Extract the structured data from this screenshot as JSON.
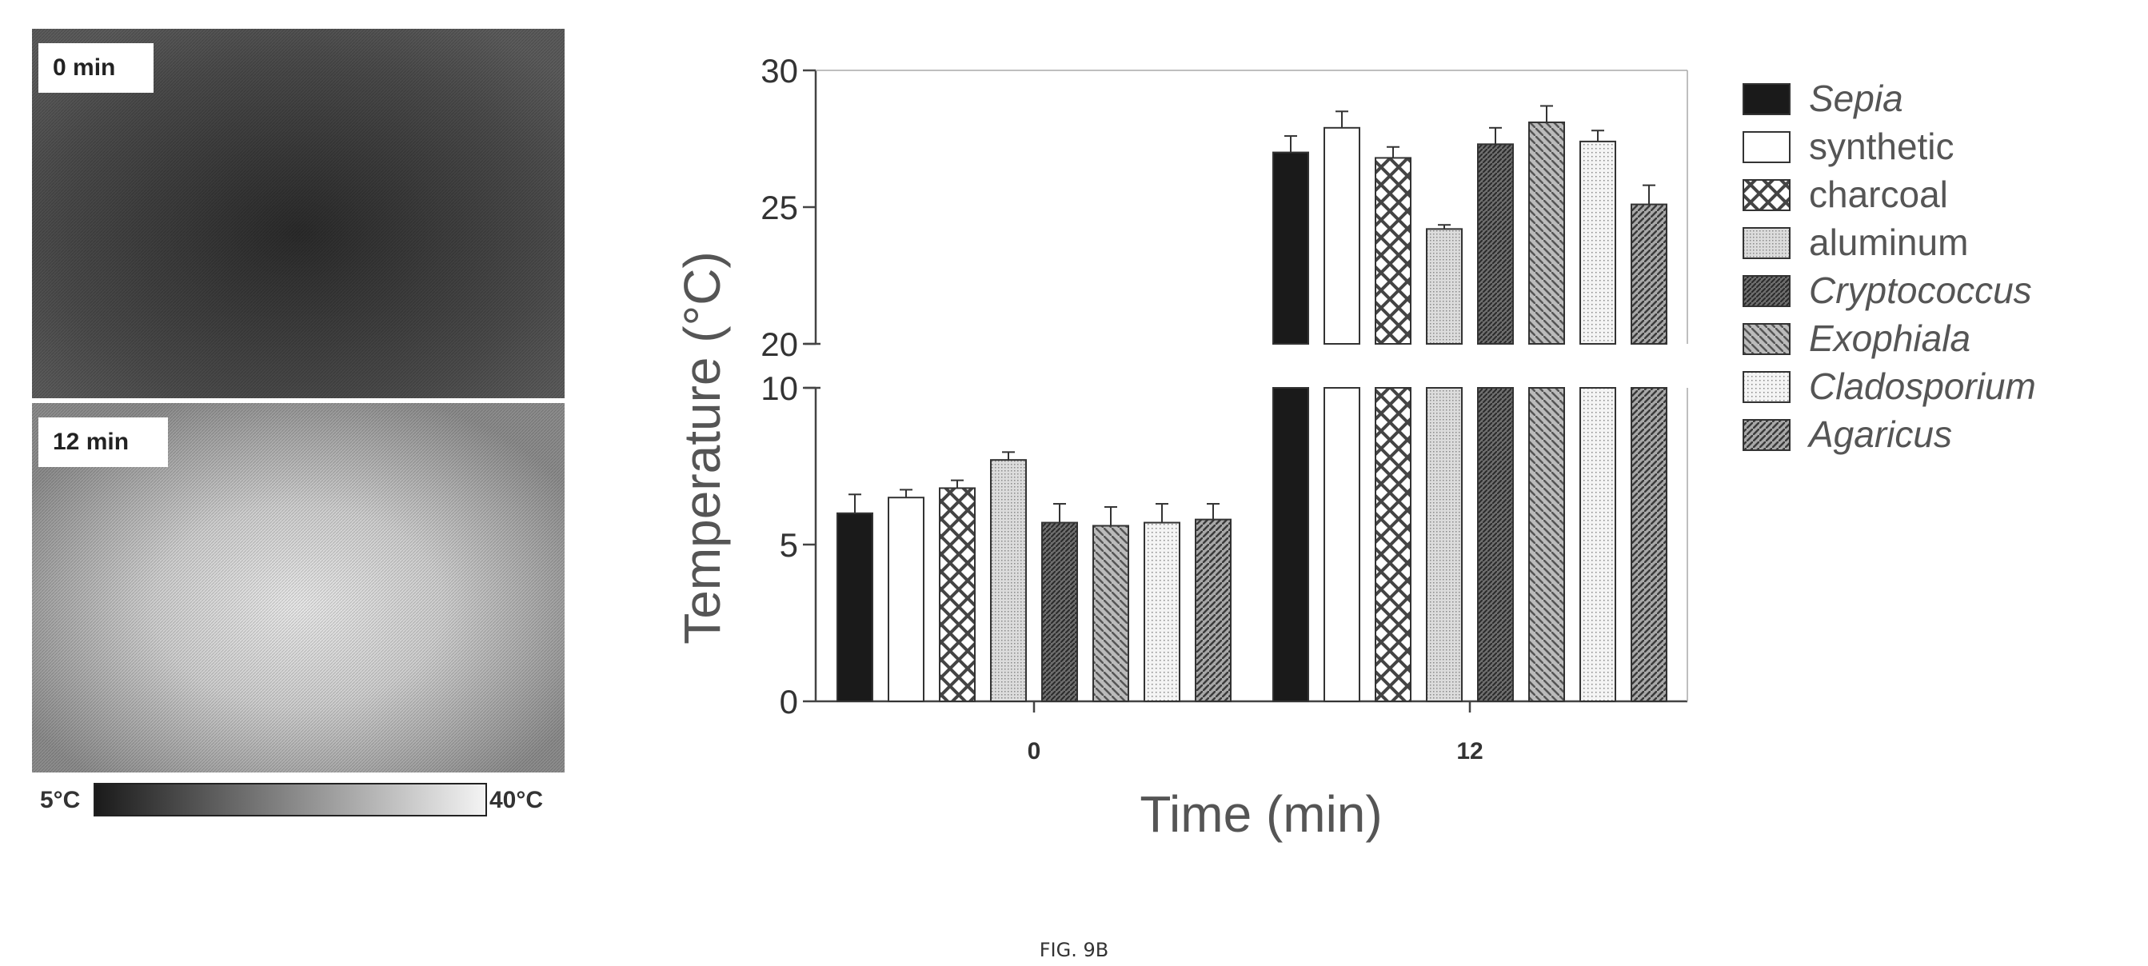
{
  "thermal_panel": {
    "top_label": "0 min",
    "bottom_label": "12 min",
    "scale_min": "5°C",
    "scale_max": "40°C"
  },
  "caption": "FIG. 9B",
  "chart_data": {
    "type": "bar",
    "xlabel": "Time (min)",
    "ylabel": "Temperature (°C)",
    "categories": [
      "0",
      "12"
    ],
    "y_axis_break": {
      "lower_range": [
        0,
        10
      ],
      "upper_range": [
        20,
        30
      ]
    },
    "lower_ticks": [
      "0",
      "5",
      "10"
    ],
    "upper_ticks": [
      "20",
      "25",
      "30"
    ],
    "legend_position": "right",
    "series": [
      {
        "name": "Sepia",
        "italic": true,
        "pattern": "solid",
        "values": [
          6.0,
          27.0
        ],
        "errors": [
          0.6,
          0.6
        ]
      },
      {
        "name": "synthetic",
        "italic": false,
        "pattern": "white",
        "values": [
          6.5,
          27.9
        ],
        "errors": [
          0.25,
          0.6
        ]
      },
      {
        "name": "charcoal",
        "italic": false,
        "pattern": "crosshatch",
        "values": [
          6.8,
          26.8
        ],
        "errors": [
          0.25,
          0.4
        ]
      },
      {
        "name": "aluminum",
        "italic": false,
        "pattern": "lightdots",
        "values": [
          7.7,
          24.2
        ],
        "errors": [
          0.25,
          0.15
        ]
      },
      {
        "name": "Cryptococcus",
        "italic": true,
        "pattern": "darkdiag",
        "values": [
          5.7,
          27.3
        ],
        "errors": [
          0.6,
          0.6
        ]
      },
      {
        "name": "Exophiala",
        "italic": true,
        "pattern": "diagback",
        "values": [
          5.6,
          28.1
        ],
        "errors": [
          0.6,
          0.6
        ]
      },
      {
        "name": "Cladosporium",
        "italic": true,
        "pattern": "sparse",
        "values": [
          5.7,
          27.4
        ],
        "errors": [
          0.6,
          0.4
        ]
      },
      {
        "name": "Agaricus",
        "italic": true,
        "pattern": "finediag",
        "values": [
          5.8,
          25.1
        ],
        "errors": [
          0.5,
          0.7
        ]
      }
    ]
  }
}
